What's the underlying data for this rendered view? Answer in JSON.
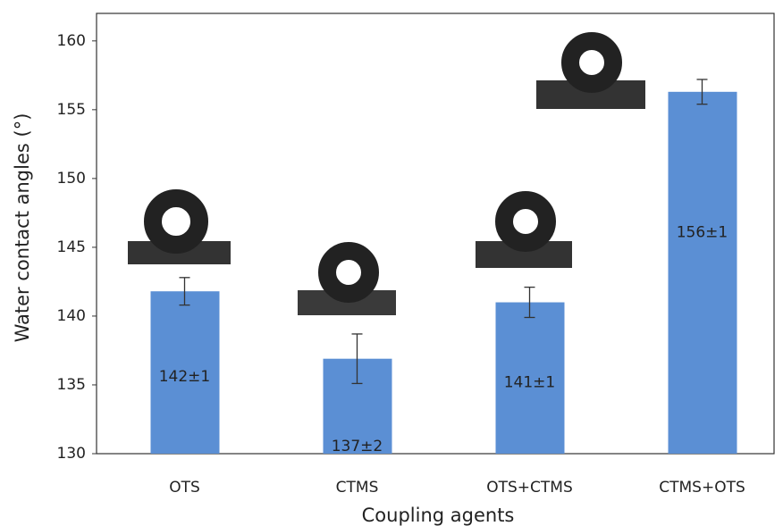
{
  "chart_data": {
    "type": "bar",
    "x_label": "Coupling agents",
    "y_label": "Water contact angles (°)",
    "categories": [
      "OTS",
      "CTMS",
      "OTS+CTMS",
      "CTMS+OTS"
    ],
    "values": [
      141.8,
      136.9,
      141.0,
      156.3
    ],
    "errors": [
      1.0,
      1.8,
      1.1,
      0.9
    ],
    "value_labels": [
      "142±1",
      "137±2",
      "141±1",
      "156±1"
    ],
    "color": "#5b8fd4",
    "ylim": [
      130,
      162
    ],
    "yticks": [
      130,
      135,
      140,
      145,
      150,
      155,
      160
    ]
  }
}
